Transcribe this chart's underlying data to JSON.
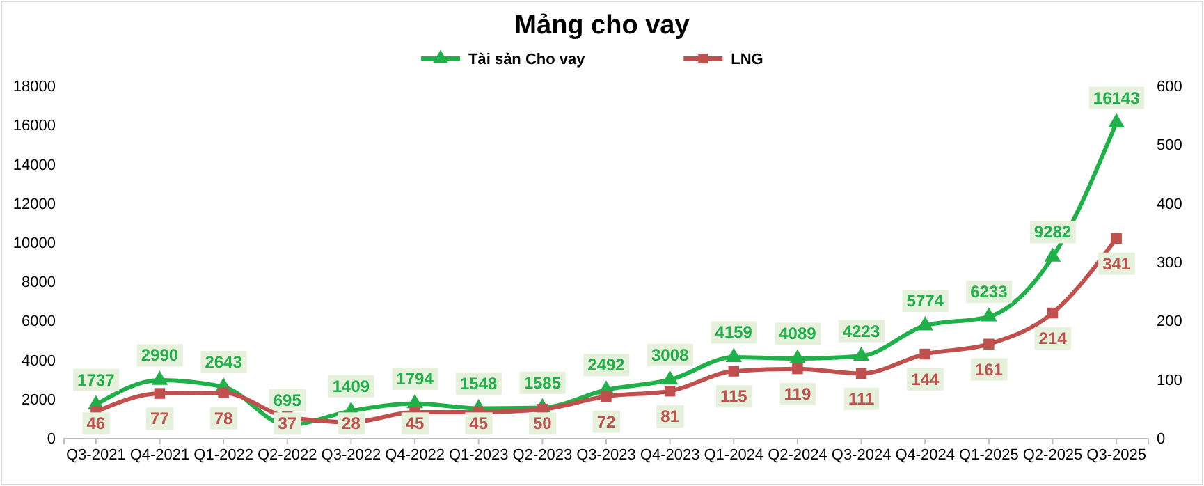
{
  "chart_data": {
    "type": "line",
    "title": "Mảng cho vay",
    "categories": [
      "Q3-2021",
      "Q4-2021",
      "Q1-2022",
      "Q2-2022",
      "Q3-2022",
      "Q4-2022",
      "Q1-2023",
      "Q2-2023",
      "Q3-2023",
      "Q4-2023",
      "Q1-2024",
      "Q2-2024",
      "Q3-2024",
      "Q4-2024",
      "Q1-2025",
      "Q2-2025",
      "Q3-2025"
    ],
    "series": [
      {
        "name": "Tài sản Cho vay",
        "color": "#1fb04a",
        "marker": "triangle",
        "values": [
          1737,
          2990,
          2643,
          695,
          1409,
          1794,
          1548,
          1585,
          2492,
          3008,
          4159,
          4089,
          4223,
          5774,
          6233,
          9282,
          16143
        ]
      },
      {
        "name": "LNG",
        "color": "#c0504d",
        "marker": "square",
        "axis": "y2",
        "values": [
          46,
          77,
          78,
          37,
          28,
          45,
          45,
          50,
          72,
          81,
          115,
          119,
          111,
          144,
          161,
          214,
          341
        ]
      }
    ],
    "ylim": [
      0,
      18000
    ],
    "yticks": [
      0,
      2000,
      4000,
      6000,
      8000,
      10000,
      12000,
      14000,
      16000,
      18000
    ],
    "y2lim": [
      0,
      600
    ],
    "y2ticks": [
      0,
      100,
      200,
      300,
      400,
      500,
      600
    ],
    "data_labels": true,
    "legend": "top",
    "grid": false
  }
}
